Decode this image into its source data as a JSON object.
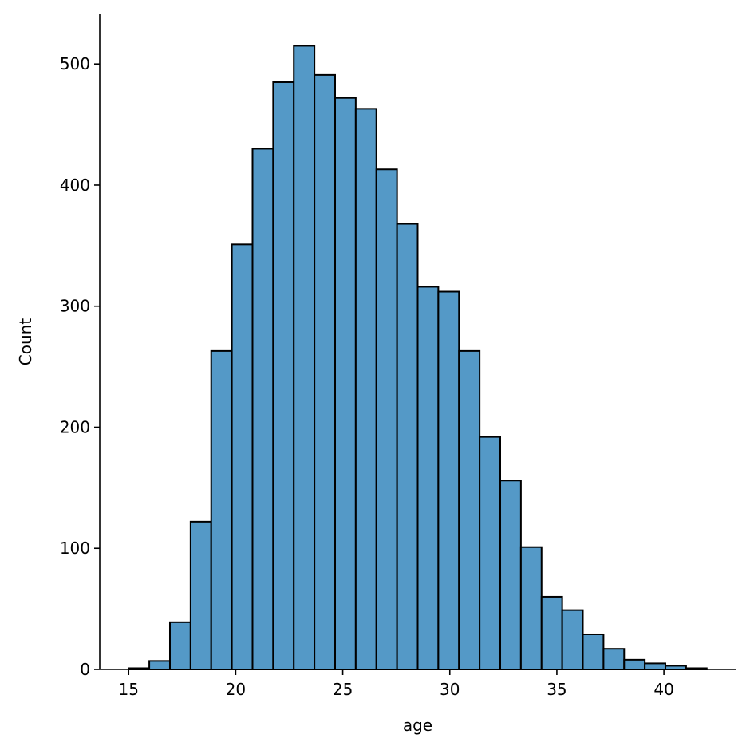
{
  "chart_data": {
    "type": "bar",
    "xlabel": "age",
    "ylabel": "Count",
    "xlim": [
      13.65,
      43.35
    ],
    "ylim": [
      0,
      541
    ],
    "xticks": [
      15,
      20,
      25,
      30,
      35,
      40
    ],
    "yticks": [
      0,
      100,
      200,
      300,
      400,
      500
    ],
    "bin_edges": [
      15.0,
      15.964,
      16.929,
      17.893,
      18.857,
      19.821,
      20.786,
      21.75,
      22.714,
      23.679,
      24.643,
      25.607,
      26.571,
      27.536,
      28.5,
      29.464,
      30.429,
      31.393,
      32.357,
      33.321,
      34.286,
      35.25,
      36.214,
      37.179,
      38.143,
      39.107,
      40.071,
      41.036,
      42.0
    ],
    "values": [
      1,
      7,
      39,
      122,
      263,
      351,
      430,
      485,
      515,
      491,
      472,
      463,
      413,
      368,
      316,
      312,
      263,
      192,
      156,
      101,
      60,
      49,
      29,
      17,
      8,
      5,
      3,
      1
    ],
    "grid": false,
    "legend": "none",
    "colors": {
      "bar_fill": "#5499c7",
      "bar_edge": "#000000"
    }
  }
}
